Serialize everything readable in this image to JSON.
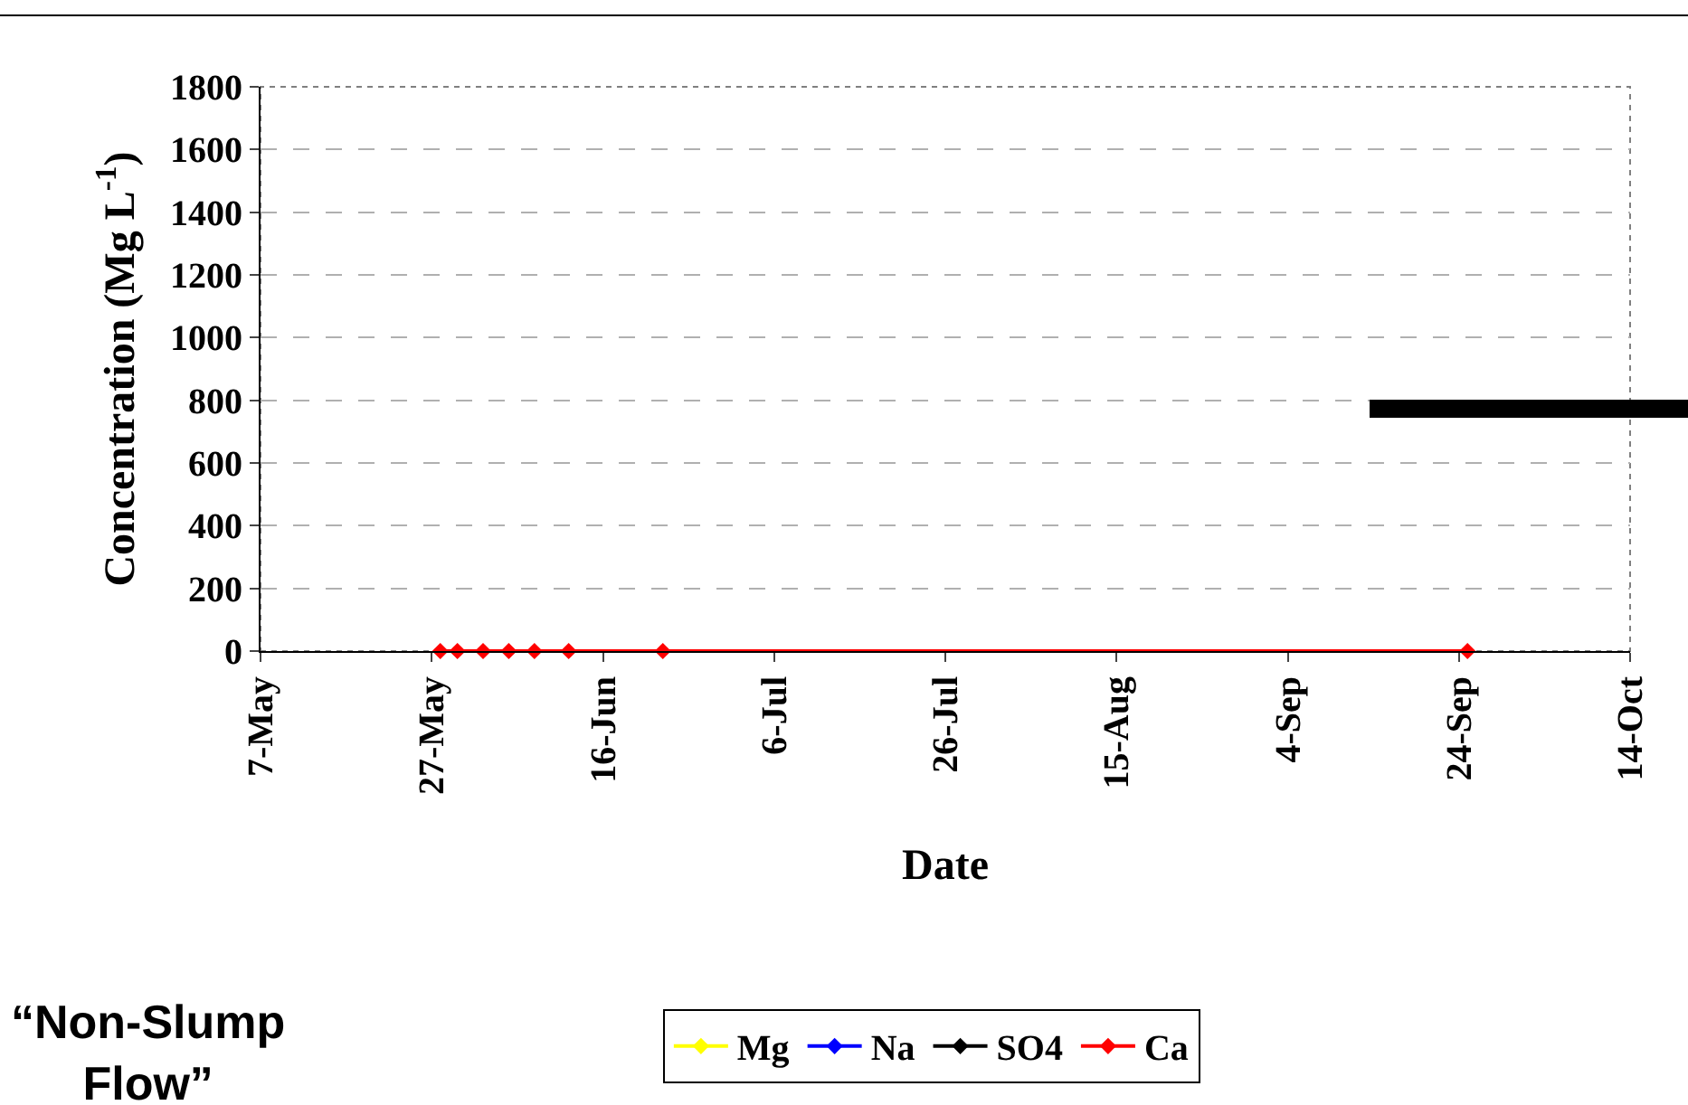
{
  "chart_data": {
    "type": "line",
    "xlabel": "Date",
    "ylabel": "Concentration (Mg L$^{-1}$)",
    "x": [
      "--05-28",
      "--05-30",
      "--06-02",
      "--06-05",
      "--06-08",
      "--06-12",
      "--06-23",
      "--09-25"
    ],
    "series": [
      {
        "name": "Mg",
        "color": "#ffff00",
        "values": [
          null,
          null,
          null,
          null,
          null,
          null,
          null,
          null
        ]
      },
      {
        "name": "Na",
        "color": "#0000ff",
        "values": [
          null,
          null,
          null,
          null,
          null,
          null,
          null,
          null
        ]
      },
      {
        "name": "SO4",
        "color": "#000000",
        "values": [
          null,
          null,
          null,
          null,
          null,
          null,
          null,
          null
        ]
      },
      {
        "name": "Ca",
        "color": "#ff0000",
        "values": [
          0,
          0,
          0,
          0,
          0,
          0,
          0,
          0
        ]
      }
    ],
    "xlim": [
      "--05-07",
      "--10-14"
    ],
    "xticks": [
      {
        "value": "--05-07",
        "label": "7-May"
      },
      {
        "value": "--05-27",
        "label": "27-May"
      },
      {
        "value": "--06-16",
        "label": "16-Jun"
      },
      {
        "value": "--07-06",
        "label": "6-Jul"
      },
      {
        "value": "--07-26",
        "label": "26-Jul"
      },
      {
        "value": "--08-15",
        "label": "15-Aug"
      },
      {
        "value": "--09-04",
        "label": "4-Sep"
      },
      {
        "value": "--09-24",
        "label": "24-Sep"
      },
      {
        "value": "--10-14",
        "label": "14-Oct"
      }
    ],
    "ylim": [
      0,
      1800
    ],
    "yticks": [
      0,
      200,
      400,
      600,
      800,
      1000,
      1200,
      1400,
      1600,
      1800
    ],
    "grid": "y",
    "legend": "bottom",
    "marker": "diamond",
    "line_style": "solid",
    "annotations": [
      "“Non-Slump Flow”"
    ]
  }
}
